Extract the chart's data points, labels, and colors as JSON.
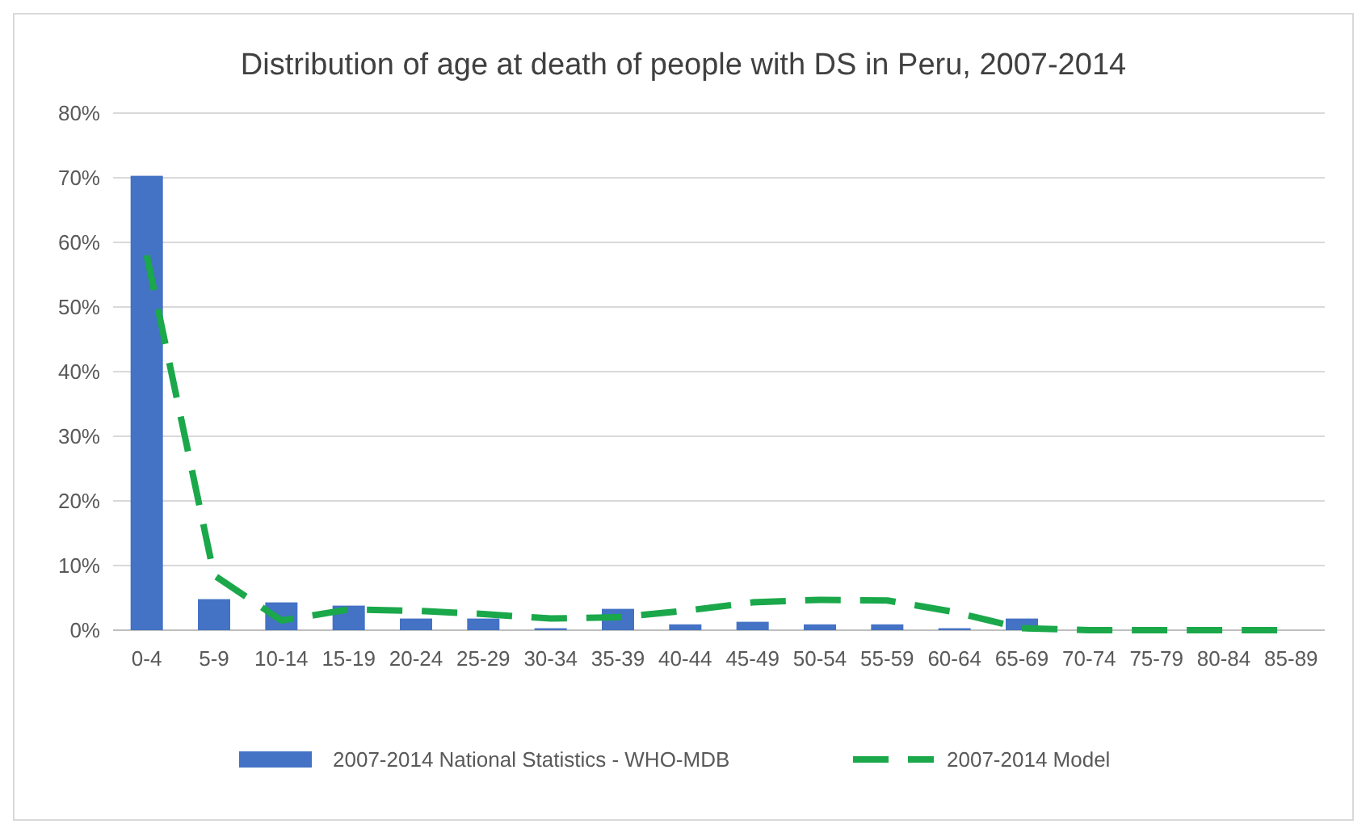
{
  "chart_data": {
    "type": "bar",
    "title": "Distribution of age at death of people with DS in Peru, 2007-2014",
    "categories": [
      "0-4",
      "5-9",
      "10-14",
      "15-19",
      "20-24",
      "25-29",
      "30-34",
      "35-39",
      "40-44",
      "45-49",
      "50-54",
      "55-59",
      "60-64",
      "65-69",
      "70-74",
      "75-79",
      "80-84",
      "85-89"
    ],
    "series": [
      {
        "name": "2007-2014 National Statistics - WHO-MDB",
        "color": "#4472c4",
        "values": [
          70.3,
          4.8,
          4.3,
          3.8,
          1.8,
          1.8,
          0.3,
          3.3,
          0.9,
          1.3,
          0.9,
          0.9,
          0.3,
          1.8,
          0,
          0,
          0,
          0
        ]
      },
      {
        "name": "2007-2014 Model",
        "type": "line",
        "color": "#1aa84a",
        "line_style": "dashed",
        "values": [
          58,
          8.5,
          1.5,
          3.2,
          3.0,
          2.5,
          1.8,
          2.0,
          3.0,
          4.3,
          4.7,
          4.6,
          2.8,
          0.3,
          0,
          0,
          0,
          0
        ]
      }
    ],
    "ylim": [
      0,
      80
    ],
    "yticks": [
      {
        "value": 0,
        "label": "0%"
      },
      {
        "value": 10,
        "label": "10%"
      },
      {
        "value": 20,
        "label": "20%"
      },
      {
        "value": 30,
        "label": "30%"
      },
      {
        "value": 40,
        "label": "40%"
      },
      {
        "value": 50,
        "label": "50%"
      },
      {
        "value": 60,
        "label": "60%"
      },
      {
        "value": 70,
        "label": "70%"
      },
      {
        "value": 80,
        "label": "80%"
      }
    ],
    "grid": "y",
    "legend": "bottom"
  }
}
